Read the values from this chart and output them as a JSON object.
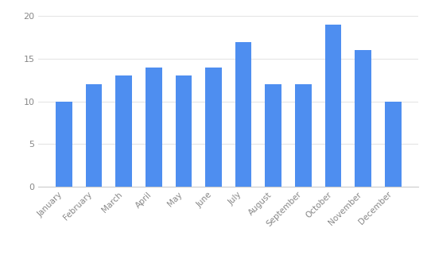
{
  "categories": [
    "January",
    "February",
    "March",
    "April",
    "May",
    "June",
    "July",
    "August",
    "September",
    "October",
    "November",
    "December"
  ],
  "values": [
    10,
    12,
    13,
    14,
    13,
    14,
    17,
    12,
    12,
    19,
    16,
    10
  ],
  "bar_color": "#4e8ef0",
  "background_color": "#ffffff",
  "ylim": [
    0,
    21
  ],
  "yticks": [
    0,
    5,
    10,
    15,
    20
  ],
  "grid_color": "#e5e5e5",
  "bar_width": 0.55
}
